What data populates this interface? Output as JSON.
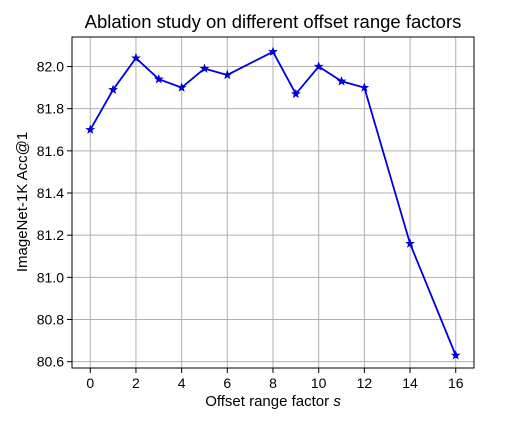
{
  "chart_data": {
    "type": "line",
    "title": "Ablation study on different offset range factors",
    "xlabel": "Offset range factor ",
    "xlabel_var": "s",
    "ylabel": "ImageNet-1K Acc@1",
    "x": [
      0,
      1,
      2,
      3,
      4,
      5,
      6,
      8,
      9,
      10,
      11,
      12,
      14,
      16
    ],
    "series": [
      {
        "values": [
          81.7,
          81.89,
          82.04,
          81.94,
          81.9,
          81.99,
          81.96,
          82.07,
          81.87,
          82.0,
          81.93,
          81.9,
          81.16,
          80.63
        ],
        "color": "#0000dd",
        "marker": "star"
      }
    ],
    "xlim": [
      -0.8,
      16.8
    ],
    "ylim": [
      80.57,
      82.14
    ],
    "xticks": [
      0,
      2,
      4,
      6,
      8,
      10,
      12,
      14,
      16
    ],
    "xtick_labels": [
      "0",
      "2",
      "4",
      "6",
      "8",
      "10",
      "12",
      "14",
      "16"
    ],
    "yticks": [
      80.6,
      80.8,
      81.0,
      81.2,
      81.4,
      81.6,
      81.8,
      82.0
    ],
    "ytick_labels": [
      "80.6",
      "80.8",
      "81.0",
      "81.2",
      "81.4",
      "81.6",
      "81.8",
      "82.0"
    ],
    "grid": true
  }
}
